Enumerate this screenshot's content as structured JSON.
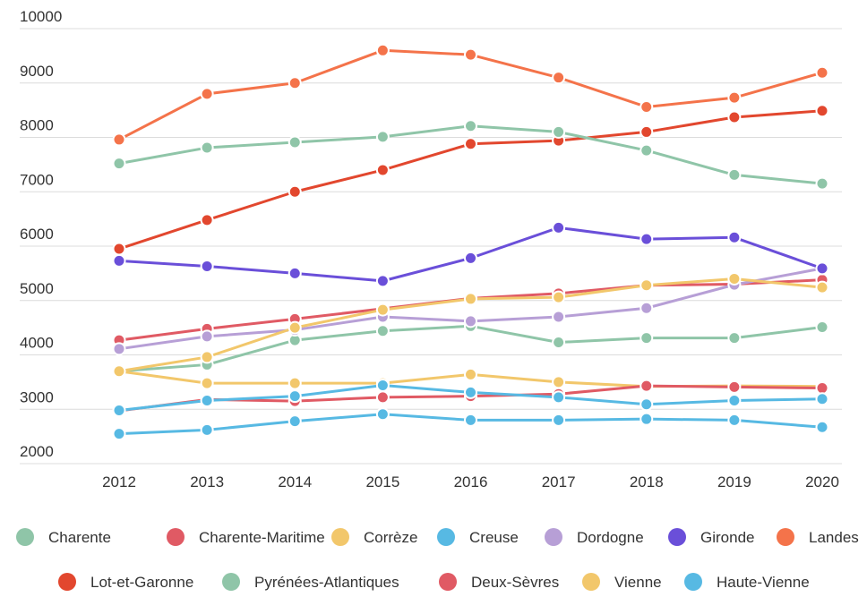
{
  "chart_data": {
    "type": "line",
    "title": "",
    "xlabel": "",
    "ylabel": "",
    "x": [
      "2012",
      "2013",
      "2014",
      "2015",
      "2016",
      "2017",
      "2018",
      "2019",
      "2020"
    ],
    "ylim": [
      2000,
      10000
    ],
    "yticks": [
      "2000",
      "3000",
      "4000",
      "5000",
      "6000",
      "7000",
      "8000",
      "9000",
      "10000"
    ],
    "grid": "horizontal",
    "legend_position": "bottom",
    "series": [
      {
        "name": "Charente",
        "color": "#8fc5a8",
        "values": [
          3700,
          3820,
          4270,
          4440,
          4530,
          4230,
          4310,
          4310,
          4510
        ]
      },
      {
        "name": "Charente-Maritime",
        "color": "#e05a64",
        "values": [
          4270,
          4480,
          4660,
          4850,
          5040,
          5130,
          5280,
          5300,
          5380
        ]
      },
      {
        "name": "Corrèze",
        "color": "#f2c76b",
        "values": [
          3700,
          3480,
          3480,
          3480,
          3640,
          3500,
          3420,
          3430,
          3420
        ]
      },
      {
        "name": "Creuse",
        "color": "#57b9e3",
        "values": [
          2550,
          2620,
          2780,
          2910,
          2800,
          2800,
          2820,
          2800,
          2670
        ]
      },
      {
        "name": "Dordogne",
        "color": "#b79fd6",
        "values": [
          4110,
          4340,
          4460,
          4700,
          4620,
          4700,
          4860,
          5290,
          5590
        ]
      },
      {
        "name": "Gironde",
        "color": "#6a4fd9",
        "values": [
          5730,
          5630,
          5500,
          5360,
          5780,
          6340,
          6130,
          6160,
          5590
        ]
      },
      {
        "name": "Landes",
        "color": "#f4734a",
        "values": [
          7960,
          8800,
          9000,
          9600,
          9520,
          9100,
          8560,
          8730,
          9190
        ]
      },
      {
        "name": "Lot-et-Garonne",
        "color": "#e2472e",
        "values": [
          5950,
          6480,
          7000,
          7400,
          7880,
          7940,
          8100,
          8370,
          8490
        ]
      },
      {
        "name": "Pyrénées-Atlantiques",
        "color": "#8fc5a8",
        "values": [
          7520,
          7810,
          7910,
          8010,
          8210,
          8100,
          7760,
          7310,
          7150
        ]
      },
      {
        "name": "Deux-Sèvres",
        "color": "#e05a64",
        "values": [
          2970,
          3180,
          3150,
          3220,
          3240,
          3280,
          3430,
          3410,
          3390
        ]
      },
      {
        "name": "Vienne",
        "color": "#f2c76b",
        "values": [
          3700,
          3960,
          4500,
          4830,
          5030,
          5060,
          5280,
          5400,
          5240
        ]
      },
      {
        "name": "Haute-Vienne",
        "color": "#57b9e3",
        "values": [
          2980,
          3160,
          3240,
          3440,
          3310,
          3220,
          3090,
          3160,
          3190
        ]
      }
    ]
  }
}
